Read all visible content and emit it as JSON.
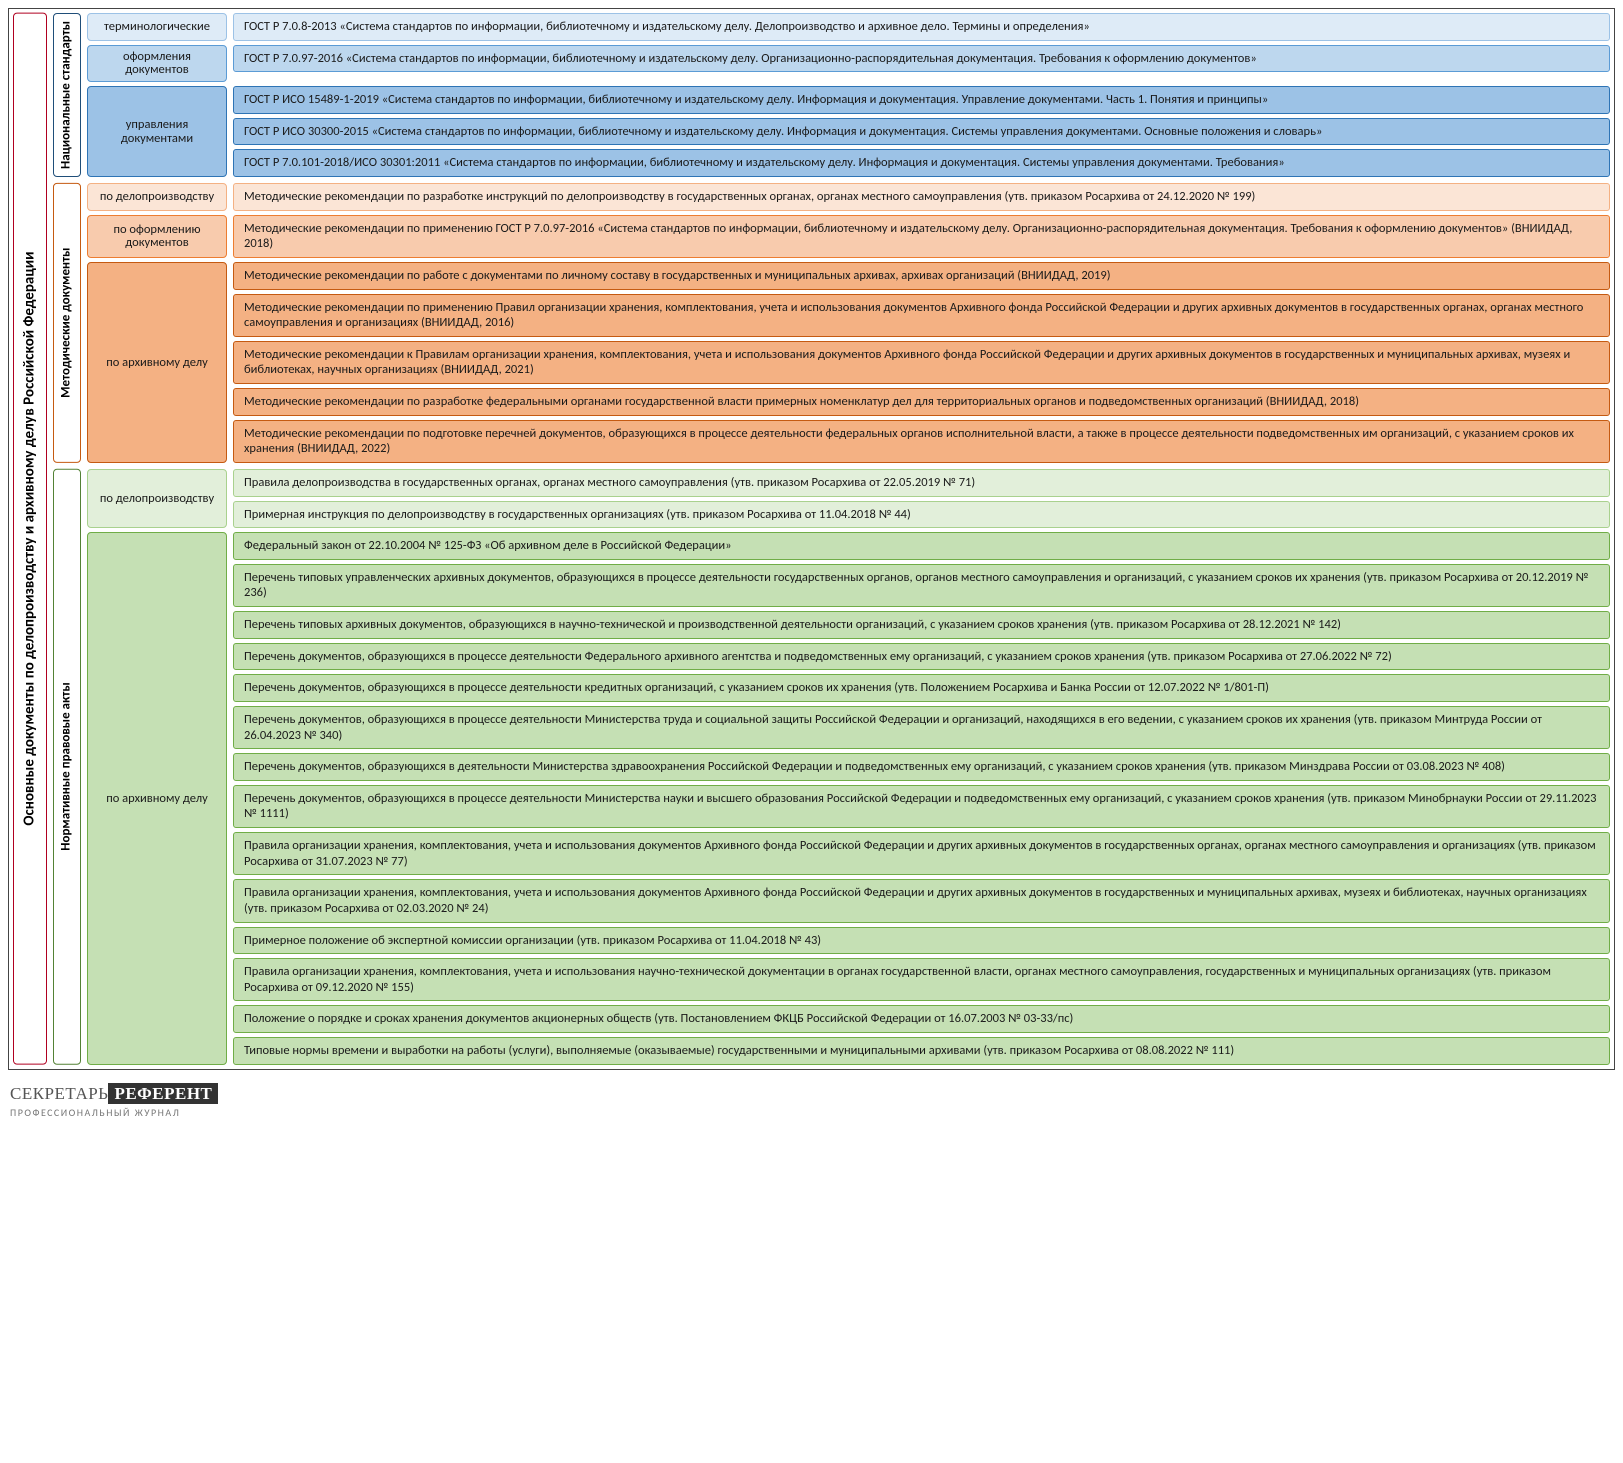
{
  "title": "Основные документы по делопроизводству и архивному делу\nв Российской Федерации",
  "title_border": "#b00020",
  "brand": {
    "a": "СЕКРЕТАРЬ",
    "b": "РЕФЕРЕНТ",
    "sub": "ПРОФЕССИОНАЛЬНЫЙ ЖУРНАЛ"
  },
  "sections": [
    {
      "id": "standards",
      "label": "Национальные стандарты",
      "label_bg": "#ffffff",
      "label_border": "#1f4e79",
      "rows": [
        {
          "cat": "терминологические",
          "cat_bg": "#deebf7",
          "cat_border": "#9cc2e6",
          "docs": [
            {
              "text": "ГОСТ Р 7.0.8-2013 «Система стандартов по информации, библиотечному и издательскому делу. Делопроизводство и архивное дело. Термины и определения»",
              "bg": "#deebf7",
              "border": "#9cc2e6"
            }
          ]
        },
        {
          "cat": "оформления документов",
          "cat_bg": "#bdd7ee",
          "cat_border": "#5b9bd5",
          "docs": [
            {
              "text": "ГОСТ Р 7.0.97-2016 «Система стандартов по информации, библиотечному и издательскому делу. Организационно-распорядительная документация. Требования к оформлению документов»",
              "bg": "#bdd7ee",
              "border": "#5b9bd5"
            }
          ]
        },
        {
          "cat": "управления документами",
          "cat_bg": "#9cc2e6",
          "cat_border": "#2e74b5",
          "docs": [
            {
              "text": "ГОСТ Р ИСО 15489-1-2019 «Система стандартов по информации, библиотечному и издательскому делу. Информация и документация. Управление документами. Часть 1. Понятия и принципы»",
              "bg": "#9cc2e6",
              "border": "#2e74b5"
            },
            {
              "text": "ГОСТ Р ИСО 30300-2015 «Система стандартов по информации, библиотечному и издательскому делу. Информация и документация. Системы управления документами. Основные положения и словарь»",
              "bg": "#9cc2e6",
              "border": "#2e74b5"
            },
            {
              "text": "ГОСТ Р 7.0.101-2018/ИСО 30301:2011 «Система стандартов по информации, библиотечному и издательскому делу. Информация и документация. Системы управления документами. Требования»",
              "bg": "#9cc2e6",
              "border": "#2e74b5"
            }
          ]
        }
      ]
    },
    {
      "id": "method",
      "label": "Методические документы",
      "label_bg": "#ffffff",
      "label_border": "#c55a11",
      "rows": [
        {
          "cat": "по делопроизводству",
          "cat_bg": "#fbe5d6",
          "cat_border": "#f4b183",
          "docs": [
            {
              "text": "Методические рекомендации по разработке инструкций по делопроизводству в государственных органах, органах местного самоуправления (утв. приказом Росархива от 24.12.2020 № 199)",
              "bg": "#fbe5d6",
              "border": "#f4b183"
            }
          ]
        },
        {
          "cat": "по оформлению документов",
          "cat_bg": "#f8cbad",
          "cat_border": "#ed7d31",
          "docs": [
            {
              "text": "Методические рекомендации по применению ГОСТ Р 7.0.97-2016 «Система стандартов по информации, библиотечному и издательскому делу. Организационно-распорядительная документация. Требования к оформлению документов» (ВНИИДАД, 2018)",
              "bg": "#f8cbad",
              "border": "#ed7d31"
            }
          ]
        },
        {
          "cat": "по архивному делу",
          "cat_bg": "#f4b183",
          "cat_border": "#c55a11",
          "docs": [
            {
              "text": "Методические рекомендации по работе с документами по личному составу в государственных и муниципальных архивах, архивах организаций (ВНИИДАД, 2019)",
              "bg": "#f4b183",
              "border": "#c55a11"
            },
            {
              "text": "Методические рекомендации по применению Правил организации хранения, комплектования, учета и использования документов Архивного фонда Российской Федерации и других архивных документов в государственных органах, органах местного самоуправления и организациях (ВНИИДАД, 2016)",
              "bg": "#f4b183",
              "border": "#c55a11"
            },
            {
              "text": "Методические рекомендации к Правилам организации хранения, комплектования, учета и использования документов Архивного фонда Российской Федерации и других архивных документов в государственных и муниципальных архивах, музеях и библиотеках, научных организациях (ВНИИДАД, 2021)",
              "bg": "#f4b183",
              "border": "#c55a11"
            },
            {
              "text": "Методические рекомендации по разработке федеральными органами государственной власти примерных номенклатур дел для территориальных органов и подведомственных организаций (ВНИИДАД, 2018)",
              "bg": "#f4b183",
              "border": "#c55a11"
            },
            {
              "text": "Методические рекомендации по подготовке перечней документов, образующихся в процессе деятельности федеральных органов исполнительной власти, а также в процессе деятельности подведомственных им организаций, с указанием сроков их хранения (ВНИИДАД, 2022)",
              "bg": "#f4b183",
              "border": "#c55a11"
            }
          ]
        }
      ]
    },
    {
      "id": "legal",
      "label": "Нормативные правовые акты",
      "label_bg": "#ffffff",
      "label_border": "#538135",
      "rows": [
        {
          "cat": "по делопроизводству",
          "cat_bg": "#e2efda",
          "cat_border": "#a9d18e",
          "docs": [
            {
              "text": "Правила делопроизводства в государственных органах, органах местного самоуправления (утв. приказом Росархива от 22.05.2019 № 71)",
              "bg": "#e2efda",
              "border": "#a9d18e"
            },
            {
              "text": "Примерная инструкция по делопроизводству в государственных организациях (утв. приказом Росархива от 11.04.2018 № 44)",
              "bg": "#e2efda",
              "border": "#a9d18e"
            }
          ]
        },
        {
          "cat": "по архивному делу",
          "cat_bg": "#c5e0b4",
          "cat_border": "#70ad47",
          "docs": [
            {
              "text": "Федеральный закон от 22.10.2004 № 125-ФЗ «Об архивном деле в Российской Федерации»",
              "bg": "#c5e0b4",
              "border": "#70ad47"
            },
            {
              "text": "Перечень типовых управленческих архивных документов, образующихся в процессе деятельности государственных органов, органов местного самоуправления и организаций, с указанием сроков их хранения (утв. приказом Росархива от 20.12.2019 № 236)",
              "bg": "#c5e0b4",
              "border": "#70ad47"
            },
            {
              "text": "Перечень типовых архивных документов, образующихся в научно-технической и производственной деятельности организаций, с указанием сроков хранения (утв. приказом Росархива от 28.12.2021 № 142)",
              "bg": "#c5e0b4",
              "border": "#70ad47"
            },
            {
              "text": "Перечень документов, образующихся в процессе деятельности Федерального архивного агентства и подведомственных ему организаций, с указанием сроков хранения (утв. приказом Росархива от 27.06.2022 № 72)",
              "bg": "#c5e0b4",
              "border": "#70ad47"
            },
            {
              "text": "Перечень документов, образующихся в процессе деятельности кредитных организаций, с указанием сроков их хранения (утв. Положением Росархива и Банка России от 12.07.2022 № 1/801-П)",
              "bg": "#c5e0b4",
              "border": "#70ad47"
            },
            {
              "text": "Перечень документов, образующихся в процессе деятельности Министерства труда и социальной защиты Российской Федерации и организаций, находящихся в его ведении, с указанием сроков их хранения (утв. приказом Минтруда России от 26.04.2023 № 340)",
              "bg": "#c5e0b4",
              "border": "#70ad47"
            },
            {
              "text": "Перечень документов, образующихся в деятельности Министерства здравоохранения Российской Федерации и подведомственных ему организаций, с указанием сроков хранения (утв. приказом Минздрава России от 03.08.2023 № 408)",
              "bg": "#c5e0b4",
              "border": "#70ad47"
            },
            {
              "text": "Перечень документов, образующихся в процессе деятельности Министерства науки и высшего образования Российской Федерации и подведомственных ему организаций, с указанием сроков хранения (утв. приказом Минобрнауки России от 29.11.2023 № 1111)",
              "bg": "#c5e0b4",
              "border": "#70ad47"
            },
            {
              "text": "Правила организации хранения, комплектования, учета и использования документов Архивного фонда Российской Федерации и других архивных документов в государственных органах, органах местного самоуправления и организациях (утв. приказом Росархива от 31.07.2023 № 77)",
              "bg": "#c5e0b4",
              "border": "#70ad47"
            },
            {
              "text": "Правила организации хранения, комплектования, учета и использования документов Архивного фонда Российской Федерации и других архивных документов в государственных и муниципальных архивах, музеях и библиотеках, научных организациях (утв. приказом Росархива от 02.03.2020 № 24)",
              "bg": "#c5e0b4",
              "border": "#70ad47"
            },
            {
              "text": "Примерное положение об экспертной комиссии организации (утв. приказом Росархива от 11.04.2018 № 43)",
              "bg": "#c5e0b4",
              "border": "#70ad47"
            },
            {
              "text": "Правила организации хранения, комплектования, учета и использования научно-технической документации в органах государственной власти, органах местного самоуправления, государственных и муниципальных организациях (утв. приказом Росархива от 09.12.2020 № 155)",
              "bg": "#c5e0b4",
              "border": "#70ad47"
            },
            {
              "text": "Положение о порядке и сроках хранения документов акционерных обществ (утв. Постановлением ФКЦБ Российской Федерации от 16.07.2003 № 03-33/пс)",
              "bg": "#c5e0b4",
              "border": "#70ad47"
            },
            {
              "text": "Типовые нормы времени и выработки на работы (услуги), выполняемые (оказываемые) государственными и муниципальными архивами (утв. приказом Росархива от 08.08.2022 № 111)",
              "bg": "#c5e0b4",
              "border": "#70ad47"
            }
          ]
        }
      ]
    }
  ]
}
